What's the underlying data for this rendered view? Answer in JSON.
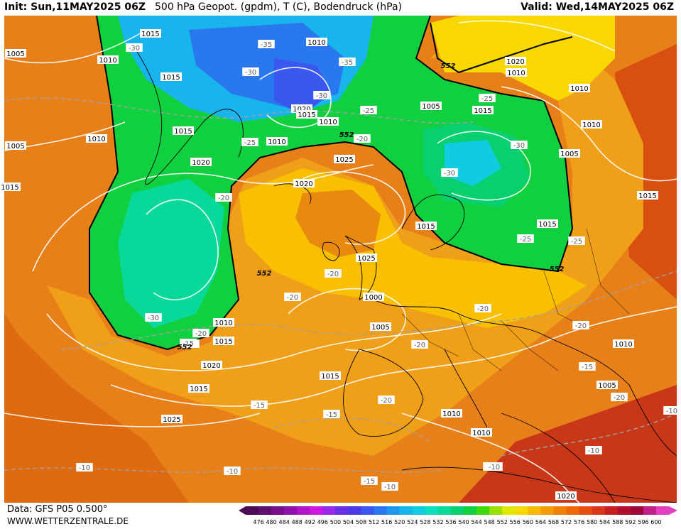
{
  "header": {
    "init": "Init: Sun,11MAY2025 06Z",
    "title": "500 hPa Geopot. (gpdm), T (C), Bodendruck (hPa)",
    "valid": "Valid: Wed,14MAY2025 06Z"
  },
  "footer": {
    "source": "Data: GFS P05 0.500°",
    "url": "WWW.WETTERZENTRALE.DE"
  },
  "colorbar": {
    "ticks": [
      "476",
      "480",
      "484",
      "488",
      "492",
      "496",
      "500",
      "504",
      "508",
      "512",
      "516",
      "520",
      "524",
      "528",
      "532",
      "536",
      "540",
      "544",
      "548",
      "552",
      "556",
      "560",
      "564",
      "568",
      "572",
      "576",
      "580",
      "584",
      "588",
      "592",
      "596",
      "600"
    ],
    "colors": [
      "#4b0c55",
      "#5e0f6f",
      "#7a0f8e",
      "#9410ad",
      "#b214c8",
      "#cc19e0",
      "#9a28e8",
      "#6a30e6",
      "#4a3ae6",
      "#3a58f0",
      "#2a78ee",
      "#2096ee",
      "#18b4ec",
      "#10cce0",
      "#0ae0c0",
      "#08d89a",
      "#08d070",
      "#10d040",
      "#40d810",
      "#9ae000",
      "#e0e800",
      "#f8d800",
      "#f8b800",
      "#f49c00",
      "#f08000",
      "#ec6800",
      "#e45010",
      "#d83818",
      "#c42020",
      "#b01030",
      "#9c0838",
      "#c0208c",
      "#e040c0"
    ]
  },
  "pressure_labels": [
    "1015",
    "1005",
    "1010",
    "1015",
    "1010",
    "1010",
    "1005",
    "1020",
    "1015",
    "1010",
    "1015",
    "1010",
    "1020",
    "1025",
    "1020",
    "1015",
    "1025",
    "1020",
    "1010",
    "1005",
    "1015",
    "1010",
    "1010",
    "1005",
    "1015",
    "1015",
    "1000",
    "1005",
    "1010",
    "1015",
    "1020",
    "1015",
    "1010",
    "1005",
    "1015",
    "1010",
    "1010",
    "1025",
    "1020",
    "1015",
    "1010"
  ],
  "temp_labels": [
    "-30",
    "-35",
    "-30",
    "-35",
    "-30",
    "-25",
    "-25",
    "-20",
    "-25",
    "-30",
    "-30",
    "-25",
    "-20",
    "-20",
    "-20",
    "-25",
    "-30",
    "-25",
    "-20",
    "-20",
    "-20",
    "-15",
    "-20",
    "-20",
    "-15",
    "-15",
    "-20",
    "-15",
    "-10",
    "-15",
    "-10",
    "-10",
    "-10",
    "-10",
    "-10",
    "-10"
  ],
  "geopotential_labels": [
    "552",
    "552",
    "552",
    "552",
    "552"
  ]
}
